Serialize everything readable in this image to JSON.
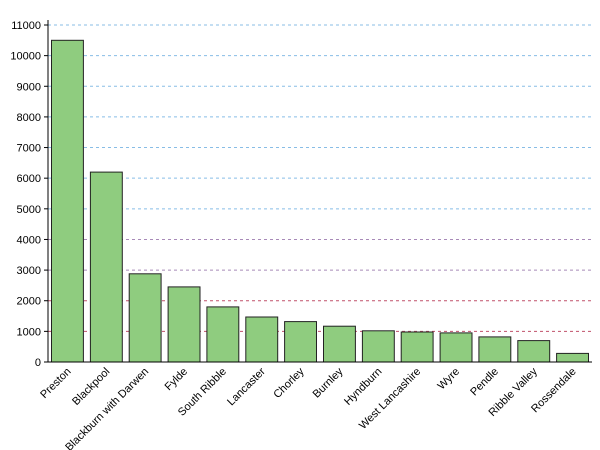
{
  "chart_data": {
    "type": "bar",
    "title": "",
    "xlabel": "",
    "ylabel": "",
    "categories": [
      "Preston",
      "Blackpool",
      "Blackburn with Darwen",
      "Fylde",
      "South Ribble",
      "Lancaster",
      "Chorley",
      "Burnley",
      "Hyndburn",
      "West Lancashire",
      "Wyre",
      "Pendle",
      "Ribble Valley",
      "Rossendale"
    ],
    "values": [
      10500,
      6200,
      2880,
      2450,
      1800,
      1470,
      1320,
      1170,
      1020,
      980,
      950,
      820,
      700,
      280
    ],
    "yticks": [
      0,
      1000,
      2000,
      3000,
      4000,
      5000,
      6000,
      7000,
      8000,
      9000,
      10000,
      11000
    ],
    "ylim": [
      0,
      11000
    ],
    "grid": true,
    "colors": {
      "bar_fill": "#8fcc7f",
      "bar_stroke": "#222222",
      "grid_high": "#88bde6",
      "grid_mid": "#a88ab8",
      "grid_low": "#c0506a",
      "axis": "#000000"
    }
  }
}
